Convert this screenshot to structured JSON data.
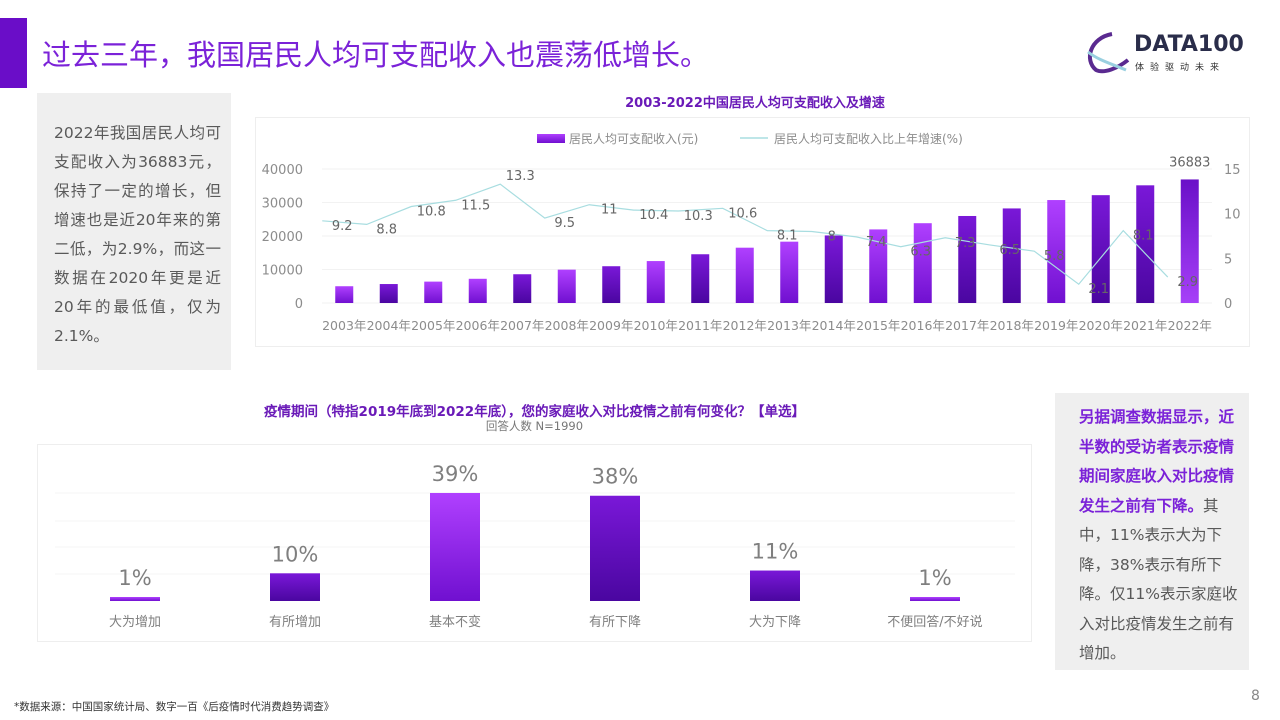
{
  "header": {
    "title": "过去三年，我国居民人均可支配收入也震荡低增长。",
    "logo_text": "DATA100",
    "logo_sub": "体验驱动未来"
  },
  "left_note": "2022年我国居民人均可支配收入为36883元，保持了一定的增长，但增速也是近20年来的第二低，为2.9%，而这一数据在2020年更是近20年的最低值，仅为2.1%。",
  "right_note": {
    "bold": "另据调查数据显示，近半数的受访者表示疫情期间家庭收入对比疫情发生之前有下降。",
    "normal": "其中，11%表示大为下降，38%表示有所下降。仅11%表示家庭收入对比疫情发生之前有增加。"
  },
  "colors": {
    "accent": "#6a0dc8",
    "bar_light": "#a030f0",
    "bar_dark": "#5a08b8",
    "line": "#a8dde0"
  },
  "chart_data": [
    {
      "type": "bar+line",
      "title": "2003-2022中国居民人均可支配收入及增速",
      "categories": [
        "2003年",
        "2004年",
        "2005年",
        "2006年",
        "2007年",
        "2008年",
        "2009年",
        "2010年",
        "2011年",
        "2012年",
        "2013年",
        "2014年",
        "2015年",
        "2016年",
        "2017年",
        "2018年",
        "2019年",
        "2020年",
        "2021年",
        "2022年"
      ],
      "series": [
        {
          "name": "居民人均可支配收入(元)",
          "type": "bar",
          "axis": "left",
          "values": [
            5007,
            5661,
            6385,
            7229,
            8584,
            9957,
            10977,
            12520,
            14551,
            16510,
            18311,
            20167,
            21966,
            23821,
            25974,
            28228,
            30733,
            32189,
            35128,
            36883
          ],
          "labels": {
            "19": "36883"
          }
        },
        {
          "name": "居民人均可支配收入比上年增速(%)",
          "type": "line",
          "axis": "right",
          "values": [
            9.2,
            8.8,
            10.8,
            11.5,
            13.3,
            9.5,
            11,
            10.4,
            10.3,
            10.6,
            8.1,
            8,
            7.4,
            6.3,
            7.3,
            6.5,
            5.8,
            2.1,
            8.1,
            2.9
          ]
        }
      ],
      "y_left": {
        "range": [
          0,
          40000
        ],
        "ticks": [
          "0",
          "10000",
          "20000",
          "30000",
          "40000"
        ]
      },
      "y_right": {
        "range": [
          0,
          15
        ],
        "ticks": [
          "0",
          "5",
          "10",
          "15"
        ]
      },
      "legend": "top",
      "grid": true
    },
    {
      "type": "bar",
      "title": "疫情期间（特指2019年底到2022年底），您的家庭收入对比疫情之前有何变化？【单选】",
      "subtitle": "回答人数 N=1990",
      "categories": [
        "大为增加",
        "有所增加",
        "基本不变",
        "有所下降",
        "大为下降",
        "不便回答/不好说"
      ],
      "values": [
        1,
        10,
        39,
        38,
        11,
        1
      ],
      "value_labels": [
        "1%",
        "10%",
        "39%",
        "38%",
        "11%",
        "1%"
      ],
      "unit": "%",
      "grid": true
    }
  ],
  "footer": {
    "source": "*数据来源：中国国家统计局、数字一百《后疫情时代消费趋势调查》",
    "page": "8"
  }
}
